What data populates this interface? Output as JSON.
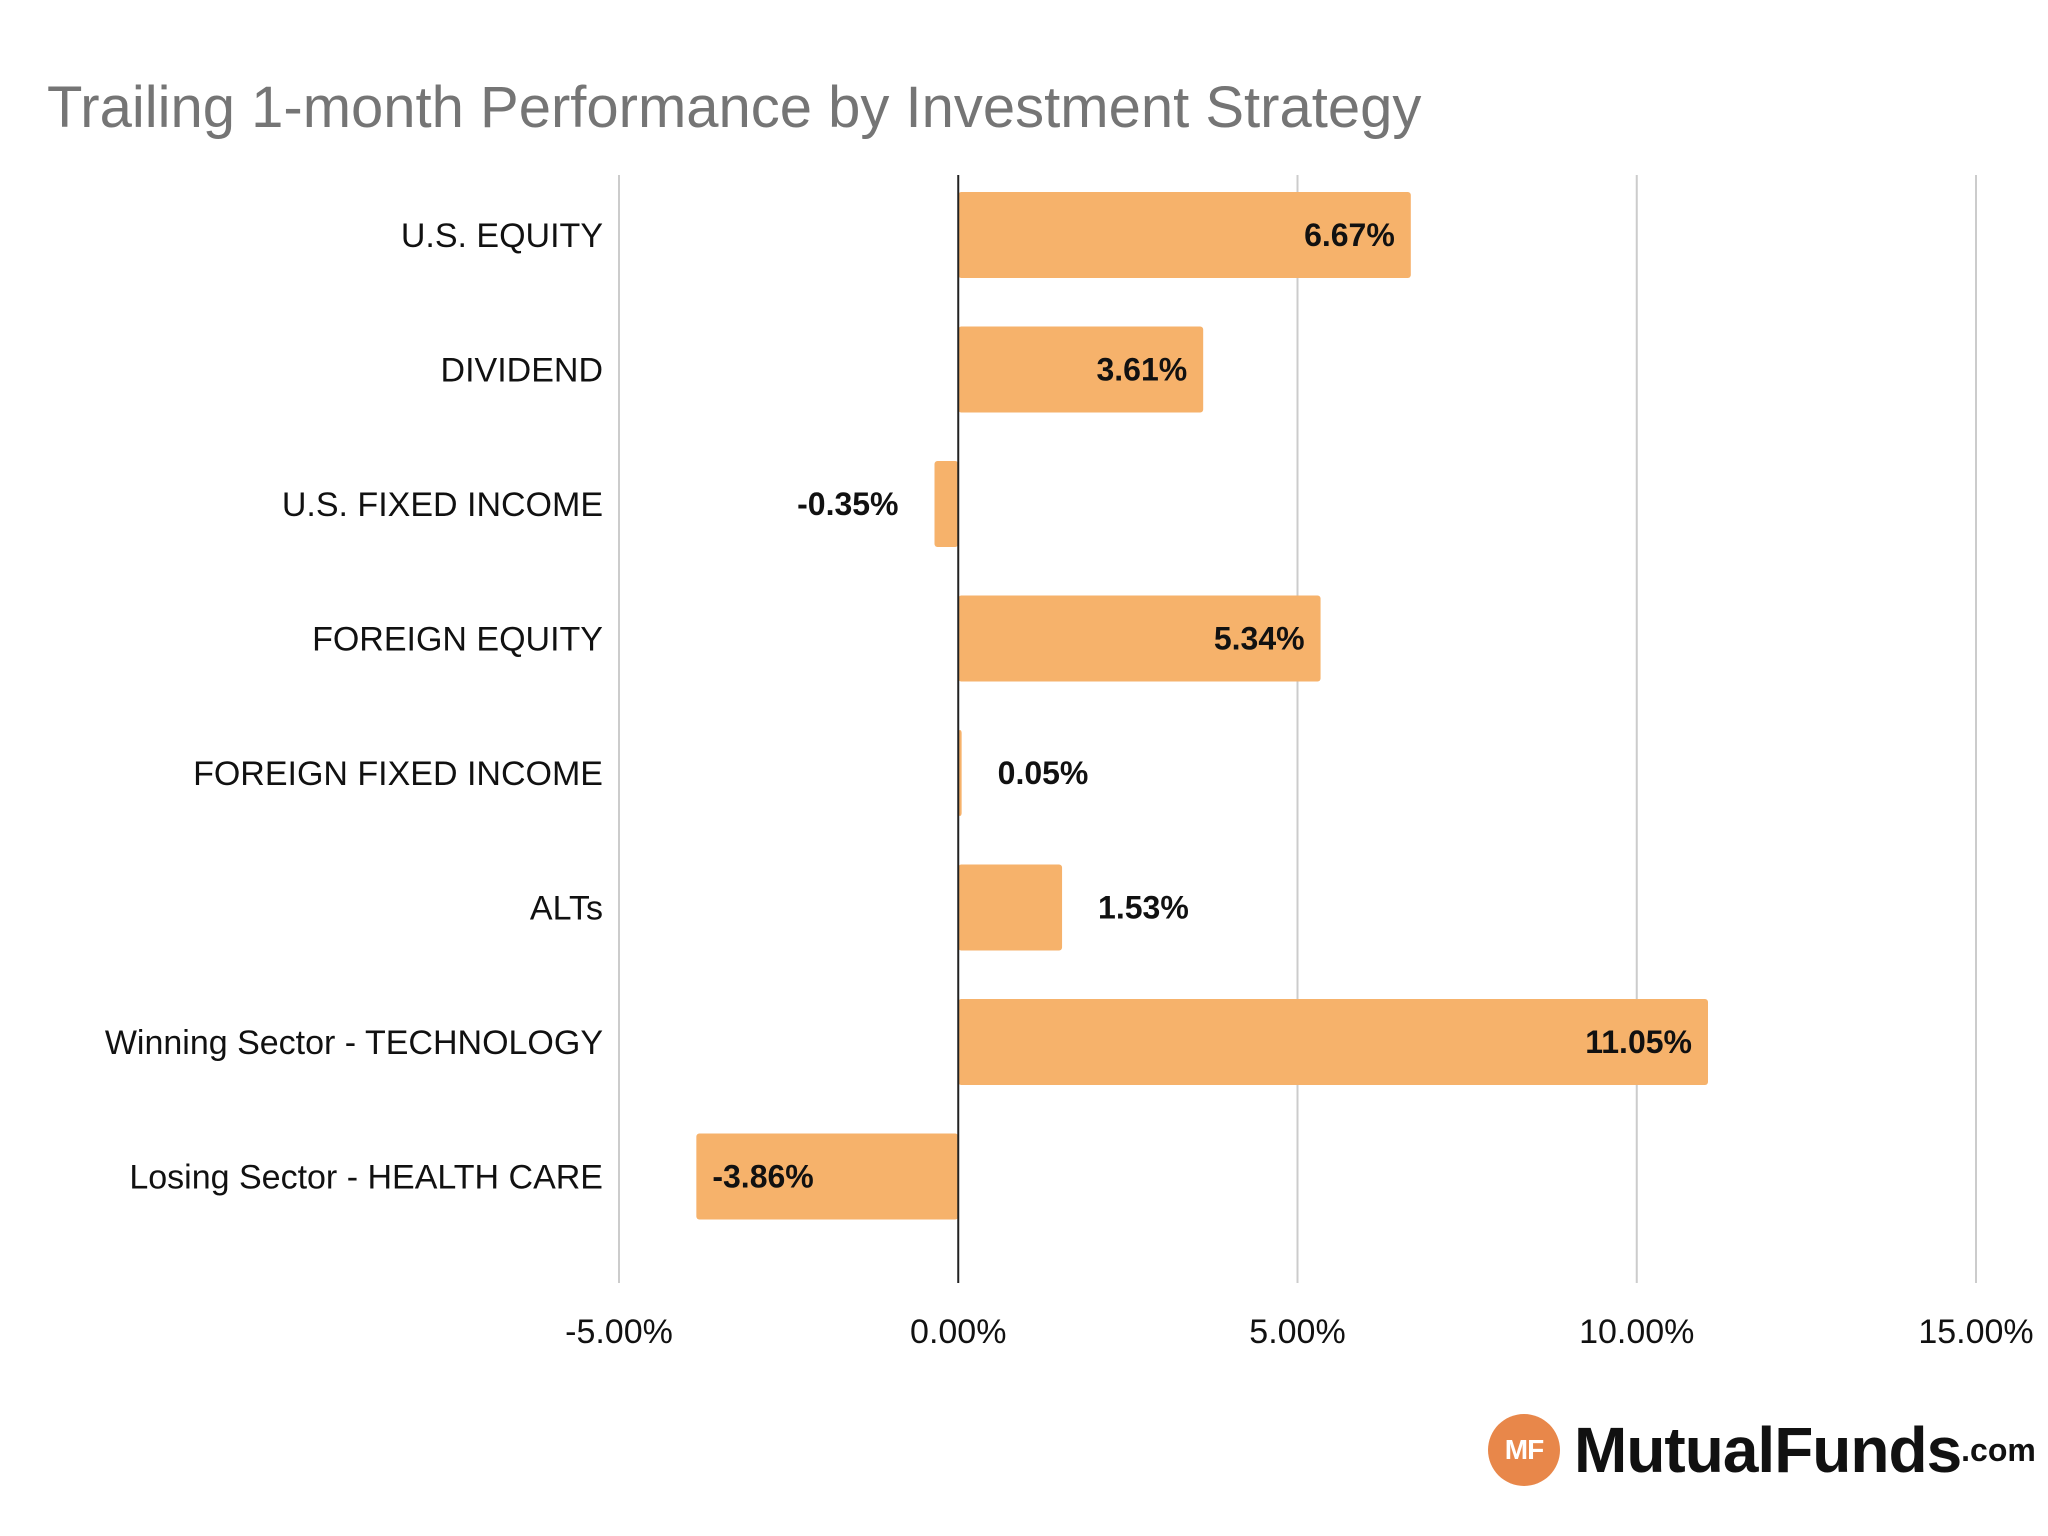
{
  "chart_data": {
    "type": "bar",
    "orientation": "horizontal",
    "title": "Trailing 1-month Performance by Investment Strategy",
    "categories": [
      "U.S. EQUITY",
      "DIVIDEND",
      "U.S. FIXED INCOME",
      "FOREIGN EQUITY",
      "FOREIGN FIXED INCOME",
      "ALTs",
      "Winning Sector - TECHNOLOGY",
      "Losing Sector - HEALTH CARE"
    ],
    "values": [
      6.67,
      3.61,
      -0.35,
      5.34,
      0.05,
      1.53,
      11.05,
      -3.86
    ],
    "value_labels": [
      "6.67%",
      "3.61%",
      "-0.35%",
      "5.34%",
      "0.05%",
      "1.53%",
      "11.05%",
      "-3.86%"
    ],
    "xlim": [
      -5,
      15
    ],
    "xticks": [
      -5,
      0,
      5,
      10,
      15
    ],
    "xtick_labels": [
      "-5.00%",
      "0.00%",
      "5.00%",
      "10.00%",
      "15.00%"
    ],
    "grid": "vertical",
    "bar_color": "#f6b26b"
  },
  "logo": {
    "badge": "MF",
    "name": "MutualFunds",
    "suffix": ".com",
    "badge_color": "#e8874a"
  }
}
